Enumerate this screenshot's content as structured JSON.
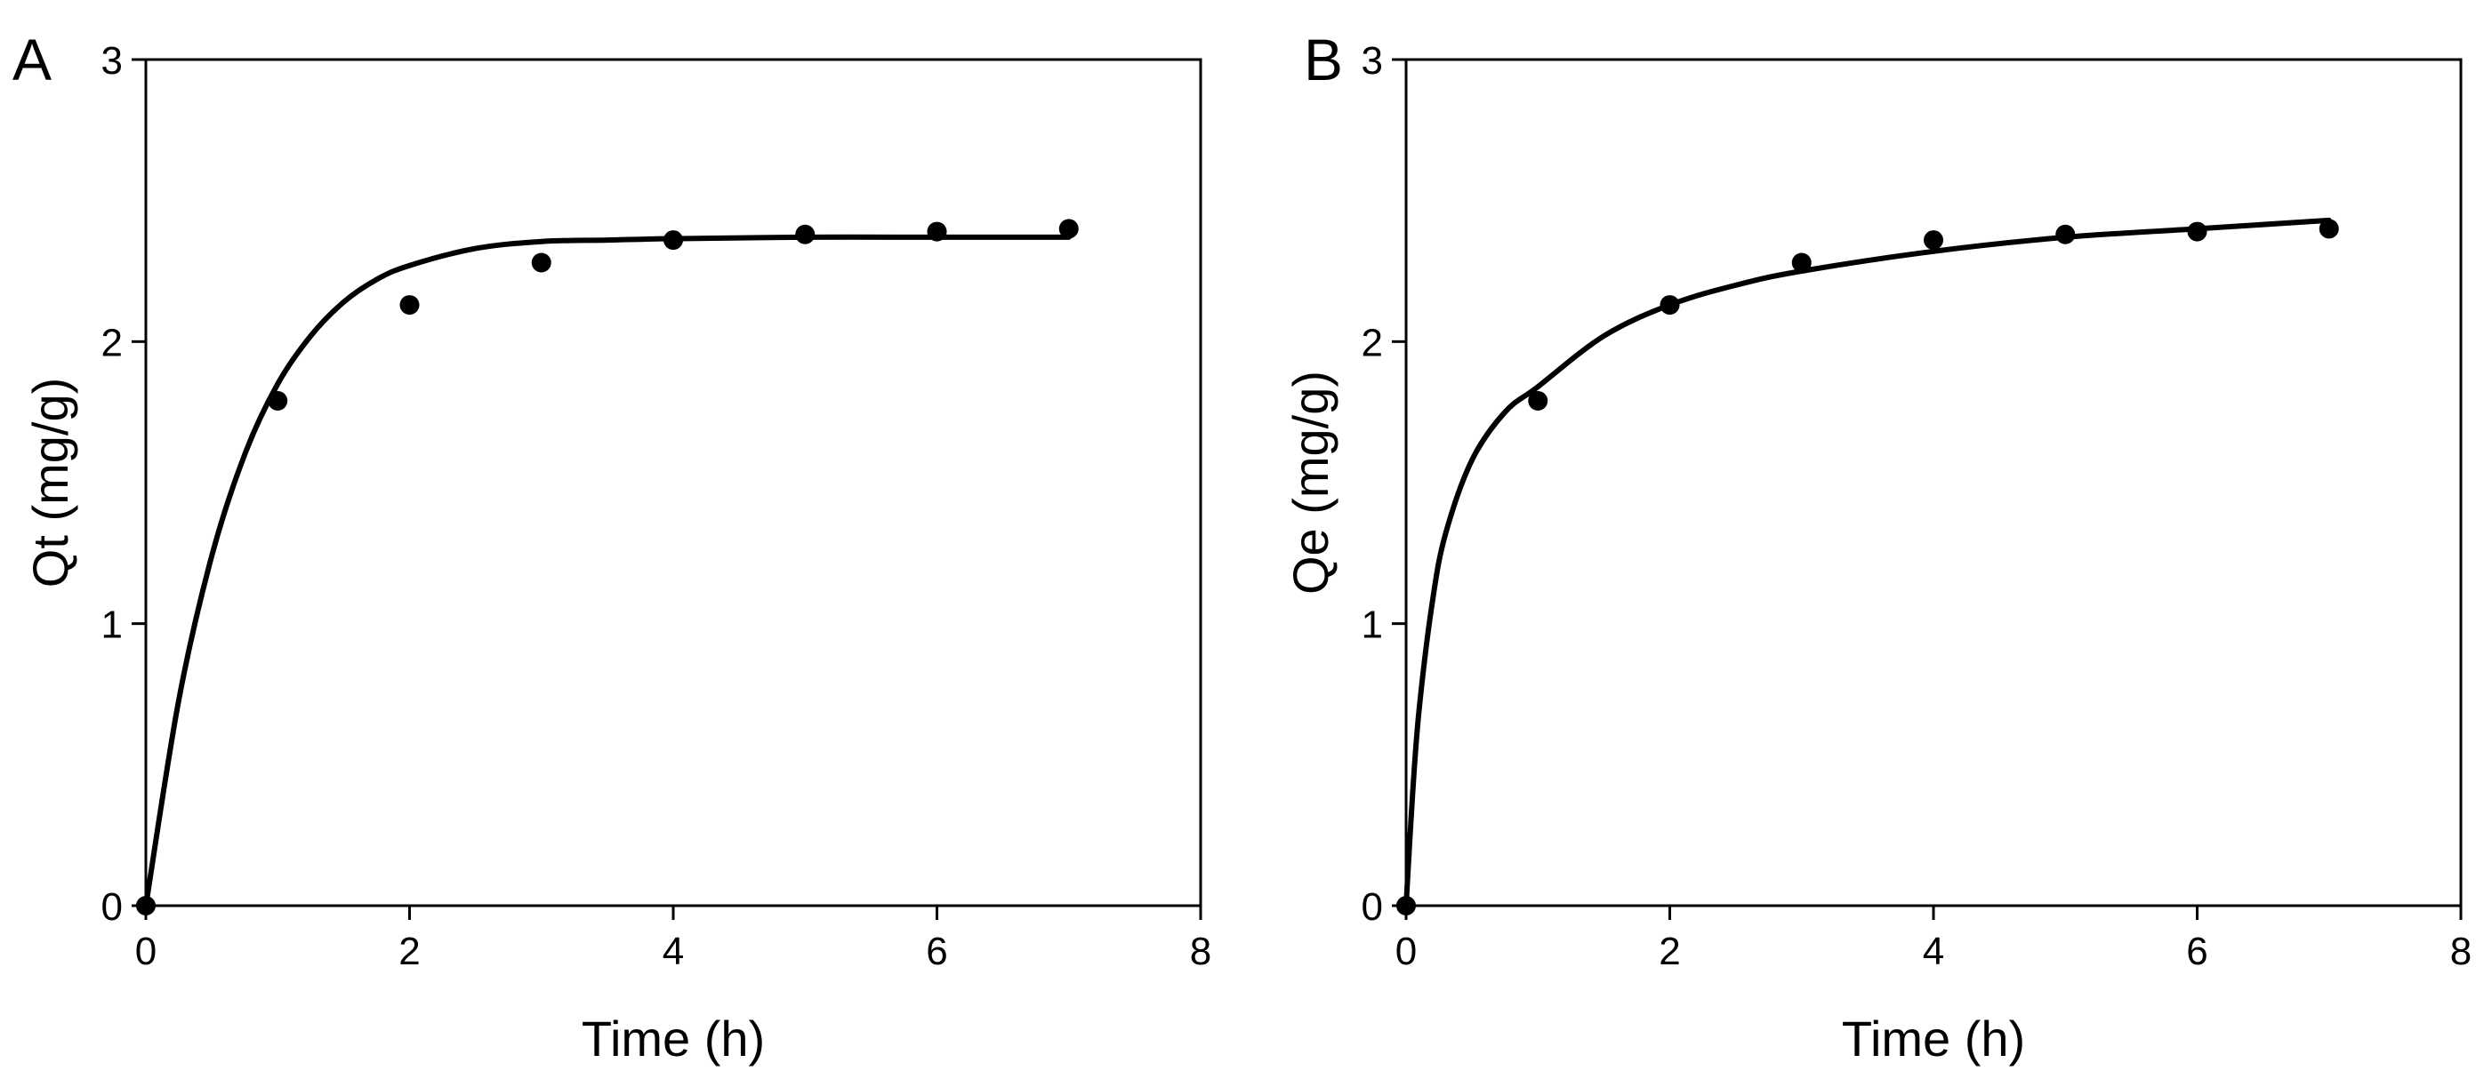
{
  "figure": {
    "panels": [
      {
        "id": "A",
        "panel_label": "A",
        "ylabel": "Qt (mg/g)"
      },
      {
        "id": "B",
        "panel_label": "B",
        "ylabel": "Qe (mg/g)"
      }
    ]
  },
  "chart_data": [
    {
      "type": "scatter",
      "panel_label": "A",
      "title": "",
      "xlabel": "Time (h)",
      "ylabel": "Qt (mg/g)",
      "xlim": [
        0,
        8
      ],
      "ylim": [
        0,
        3
      ],
      "xticks": [
        0,
        2,
        4,
        6,
        8
      ],
      "yticks": [
        0,
        1,
        2,
        3
      ],
      "grid": false,
      "points": {
        "x": [
          0,
          1,
          2,
          3,
          4,
          5,
          6,
          7
        ],
        "y": [
          0,
          1.79,
          2.13,
          2.28,
          2.36,
          2.38,
          2.39,
          2.4
        ]
      },
      "fit_line": {
        "x": [
          0,
          0.25,
          0.5,
          0.75,
          1,
          1.25,
          1.5,
          1.75,
          2,
          2.5,
          3,
          3.5,
          4,
          5,
          6,
          7
        ],
        "y": [
          0,
          0.73,
          1.24,
          1.6,
          1.85,
          2.02,
          2.14,
          2.22,
          2.27,
          2.33,
          2.355,
          2.36,
          2.365,
          2.37,
          2.37,
          2.37
        ]
      },
      "line_color": "#000000",
      "marker_color": "#000000"
    },
    {
      "type": "scatter",
      "panel_label": "B",
      "title": "",
      "xlabel": "Time (h)",
      "ylabel": "Qe (mg/g)",
      "xlim": [
        0,
        8
      ],
      "ylim": [
        0,
        3
      ],
      "xticks": [
        0,
        2,
        4,
        6,
        8
      ],
      "yticks": [
        0,
        1,
        2,
        3
      ],
      "grid": false,
      "points": {
        "x": [
          0,
          1,
          2,
          3,
          4,
          5,
          6,
          7
        ],
        "y": [
          0,
          1.79,
          2.13,
          2.28,
          2.36,
          2.38,
          2.39,
          2.4
        ]
      },
      "fit_line": {
        "x": [
          0,
          0.05,
          0.1,
          0.2,
          0.3,
          0.5,
          0.75,
          1,
          1.5,
          2,
          2.5,
          3,
          4,
          5,
          6,
          7
        ],
        "y": [
          0,
          0.4,
          0.7,
          1.08,
          1.32,
          1.58,
          1.75,
          1.84,
          2.02,
          2.13,
          2.2,
          2.25,
          2.32,
          2.37,
          2.4,
          2.43
        ]
      },
      "line_color": "#000000",
      "marker_color": "#000000"
    }
  ]
}
